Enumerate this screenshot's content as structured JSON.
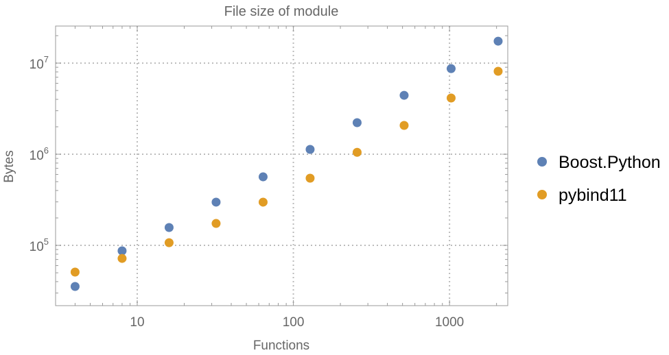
{
  "chart_data": {
    "type": "scatter",
    "title": "File size of module",
    "xlabel": "Functions",
    "ylabel": "Bytes",
    "xscale": "log",
    "yscale": "log",
    "xlim": [
      3.0,
      2360
    ],
    "ylim": [
      21800,
      25500000
    ],
    "grid": true,
    "legend_position": "right",
    "x_ticks": [
      {
        "value": 10,
        "label": "10"
      },
      {
        "value": 100,
        "label": "100"
      },
      {
        "value": 1000,
        "label": "1000"
      }
    ],
    "y_ticks": [
      {
        "value": 100000,
        "base": "10",
        "exp": "5"
      },
      {
        "value": 1000000,
        "base": "10",
        "exp": "6"
      },
      {
        "value": 10000000,
        "base": "10",
        "exp": "7"
      }
    ],
    "x": [
      4,
      8,
      16,
      32,
      64,
      128,
      256,
      512,
      1024,
      2048
    ],
    "series": [
      {
        "name": "Boost.Python",
        "color": "#5e81b5",
        "values": [
          35400,
          87100,
          157000,
          298000,
          565000,
          1130000,
          2220000,
          4430000,
          8700000,
          17400000
        ]
      },
      {
        "name": "pybind11",
        "color": "#e19c24",
        "values": [
          50900,
          71900,
          107000,
          174000,
          298000,
          546000,
          1050000,
          2070000,
          4140000,
          8130000
        ]
      }
    ]
  }
}
